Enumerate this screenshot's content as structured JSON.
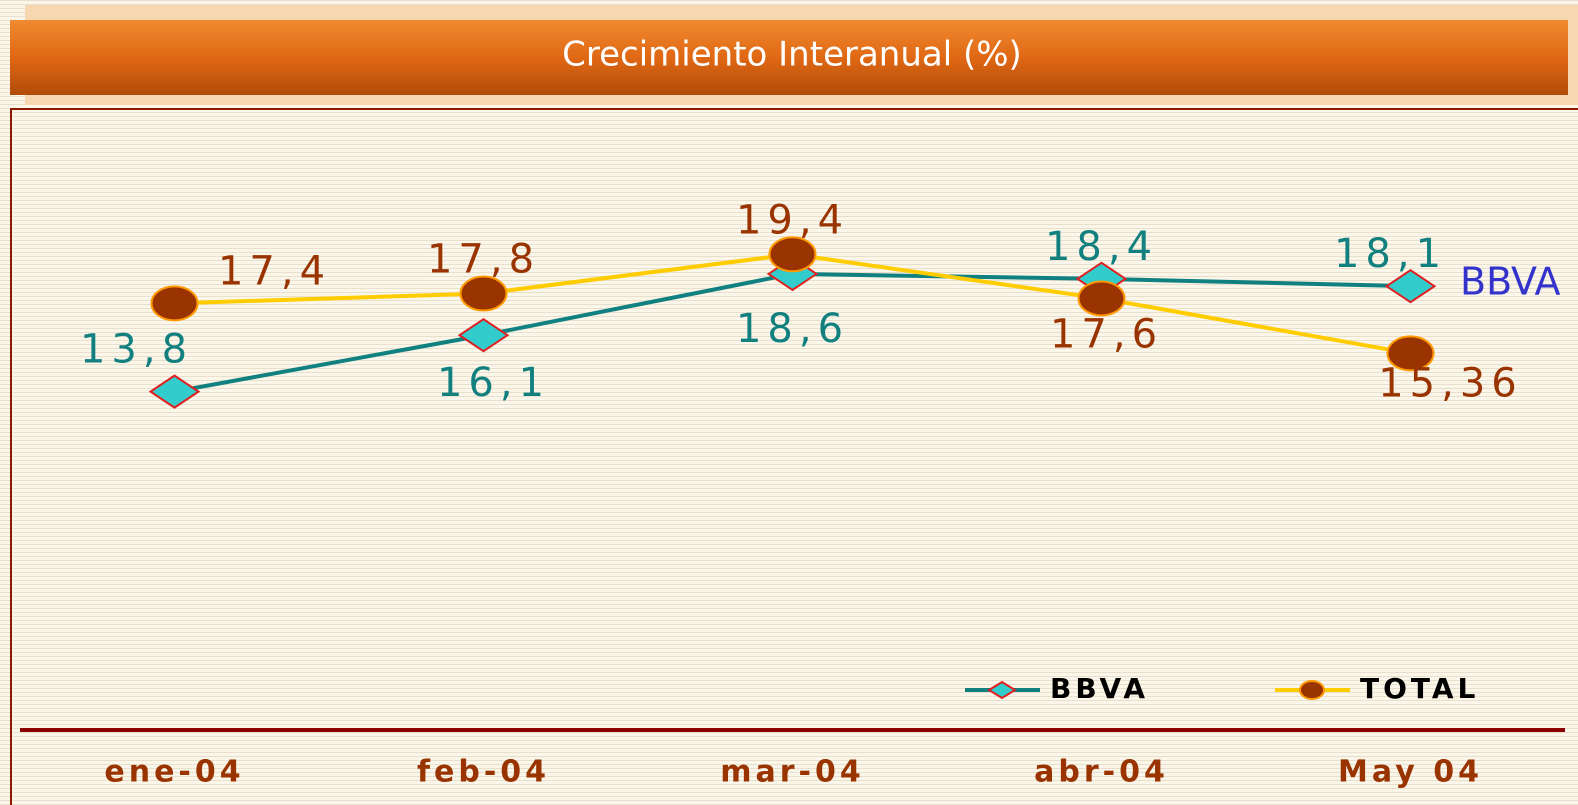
{
  "chart_data": {
    "type": "line",
    "title": "Crecimiento Interanual (%)",
    "categories": [
      "ene-04",
      "feb-04",
      "mar-04",
      "abr-04",
      "May 04"
    ],
    "series": [
      {
        "name": "BBVA",
        "color": "#108080",
        "marker_color": "#33cccc",
        "values": [
          13.8,
          16.1,
          18.6,
          18.4,
          18.1
        ],
        "value_labels": [
          "13,8",
          "16,1",
          "18,6",
          "18,4",
          "18,1"
        ]
      },
      {
        "name": "TOTAL",
        "color": "#ffcc00",
        "marker_color": "#993300",
        "values": [
          17.4,
          17.8,
          19.4,
          17.6,
          15.36
        ],
        "value_labels": [
          "17,4",
          "17,8",
          "19,4",
          "17,6",
          "15,36"
        ]
      }
    ],
    "annotation": "BBVA",
    "ylim": [
      0,
      25
    ],
    "legend": "lower right"
  }
}
